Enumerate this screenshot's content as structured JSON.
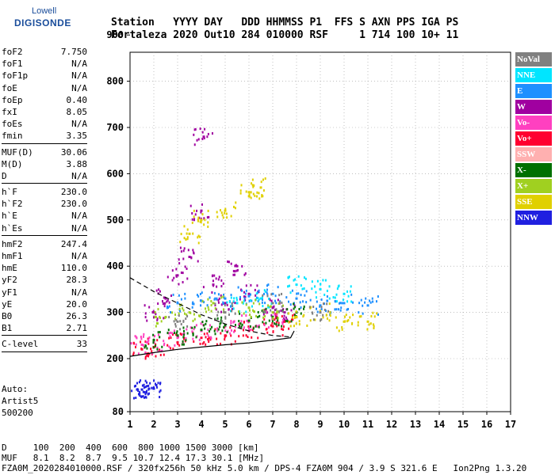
{
  "logo": {
    "line1": "Lowell",
    "line2": "DIGISONDE"
  },
  "header": {
    "line1": "Station   YYYY DAY   DDD HHMMSS P1  FFS S AXN PPS IGA PS",
    "line2": "Fortaleza 2020 Out10 284 010000 RSF     1 714 100 10+ 11"
  },
  "params": {
    "group1": [
      {
        "k": "foF2",
        "v": "7.750"
      },
      {
        "k": "foF1",
        "v": "N/A"
      },
      {
        "k": "foF1p",
        "v": "N/A"
      },
      {
        "k": "foE",
        "v": "N/A"
      },
      {
        "k": "foEp",
        "v": "0.40"
      },
      {
        "k": "fxI",
        "v": "8.05"
      },
      {
        "k": "foEs",
        "v": "N/A"
      },
      {
        "k": "fmin",
        "v": "3.35"
      }
    ],
    "group2": [
      {
        "k": "MUF(D)",
        "v": "30.06"
      },
      {
        "k": "M(D)",
        "v": "3.88"
      },
      {
        "k": "D",
        "v": "N/A"
      }
    ],
    "group3": [
      {
        "k": "h`F",
        "v": "230.0"
      },
      {
        "k": "h`F2",
        "v": "230.0"
      },
      {
        "k": "h`E",
        "v": "N/A"
      },
      {
        "k": "h`Es",
        "v": "N/A"
      }
    ],
    "group4": [
      {
        "k": "hmF2",
        "v": "247.4"
      },
      {
        "k": "hmF1",
        "v": "N/A"
      },
      {
        "k": "hmE",
        "v": "110.0"
      },
      {
        "k": "yF2",
        "v": "28.3"
      },
      {
        "k": "yF1",
        "v": "N/A"
      },
      {
        "k": "yE",
        "v": "20.0"
      },
      {
        "k": "B0",
        "v": "26.3"
      },
      {
        "k": "B1",
        "v": "2.71"
      }
    ],
    "group5": [
      {
        "k": "C-level",
        "v": "33"
      }
    ]
  },
  "auto": {
    "line1": "Auto:",
    "line2": "Artist5",
    "line3": "500200"
  },
  "legend": [
    {
      "label": "NoVal",
      "color": "#808080"
    },
    {
      "label": "NNE",
      "color": "#00e5ff"
    },
    {
      "label": "E",
      "color": "#1e90ff"
    },
    {
      "label": "W",
      "color": "#a000a0"
    },
    {
      "label": "Vo-",
      "color": "#ff40c0"
    },
    {
      "label": "Vo+",
      "color": "#ff0030"
    },
    {
      "label": "SSW",
      "color": "#ffb0b0"
    },
    {
      "label": "X-",
      "color": "#007000"
    },
    {
      "label": "X+",
      "color": "#a0d020"
    },
    {
      "label": "SSE",
      "color": "#e0d000"
    },
    {
      "label": "NNW",
      "color": "#2020e0"
    }
  ],
  "footer": {
    "line1": "D     100  200  400  600  800 1000 1500 3000 [km]",
    "line2": "MUF   8.1  8.2  8.7  9.5 10.7 12.4 17.3 30.1 [MHz]",
    "line3": "FZA0M_2020284010000.RSF / 320fx256h 50 kHz 5.0 km / DPS-4 FZA0M 904 / 3.9 S 321.6 E   Ion2Png 1.3.20"
  },
  "chart_data": {
    "type": "scatter",
    "title": "",
    "xlabel": "",
    "ylabel": "",
    "xlim": [
      1,
      17
    ],
    "ylim": [
      80,
      900
    ],
    "xticks": [
      1,
      2,
      3,
      4,
      5,
      6,
      7,
      8,
      9,
      10,
      11,
      12,
      13,
      14,
      15,
      16,
      17
    ],
    "yticks": [
      80,
      200,
      300,
      400,
      500,
      600,
      700,
      800,
      900
    ],
    "grid": true,
    "series": [
      {
        "name": "W",
        "color": "#a000a0",
        "points": [
          [
            2.0,
            300
          ],
          [
            2.5,
            330
          ],
          [
            3.0,
            380
          ],
          [
            3.5,
            420
          ],
          [
            4.0,
            520
          ],
          [
            4.1,
            680
          ],
          [
            4.5,
            360
          ],
          [
            5.0,
            320
          ],
          [
            5.5,
            400
          ],
          [
            6.0,
            340
          ],
          [
            7.0,
            310
          ],
          [
            7.5,
            300
          ]
        ]
      },
      {
        "name": "E",
        "color": "#1e90ff",
        "points": [
          [
            3.0,
            320
          ],
          [
            4.0,
            325
          ],
          [
            5.0,
            330
          ],
          [
            6.0,
            335
          ],
          [
            7.0,
            340
          ],
          [
            8.0,
            330
          ],
          [
            9.0,
            315
          ],
          [
            10.0,
            320
          ],
          [
            11.0,
            315
          ]
        ]
      },
      {
        "name": "Vo+",
        "color": "#ff0030",
        "points": [
          [
            1.5,
            220
          ],
          [
            2.0,
            225
          ],
          [
            3.0,
            235
          ],
          [
            4.0,
            245
          ],
          [
            5.0,
            250
          ],
          [
            6.0,
            260
          ],
          [
            7.0,
            270
          ],
          [
            7.5,
            280
          ]
        ]
      },
      {
        "name": "Vo-",
        "color": "#ff40c0",
        "points": [
          [
            1.5,
            230
          ],
          [
            2.0,
            235
          ],
          [
            3.0,
            245
          ],
          [
            4.0,
            260
          ],
          [
            5.0,
            270
          ],
          [
            6.0,
            280
          ],
          [
            7.0,
            285
          ]
        ]
      },
      {
        "name": "X-",
        "color": "#007000",
        "points": [
          [
            2.0,
            240
          ],
          [
            3.0,
            250
          ],
          [
            4.0,
            262
          ],
          [
            5.0,
            272
          ],
          [
            6.0,
            282
          ],
          [
            7.0,
            290
          ],
          [
            8.0,
            300
          ]
        ]
      },
      {
        "name": "SSE",
        "color": "#e0d000",
        "points": [
          [
            3.5,
            470
          ],
          [
            4.0,
            500
          ],
          [
            5.0,
            520
          ],
          [
            6.0,
            560
          ],
          [
            6.5,
            570
          ],
          [
            8.0,
            290
          ],
          [
            9.0,
            300
          ],
          [
            10.0,
            280
          ],
          [
            11.0,
            280
          ]
        ]
      },
      {
        "name": "NNE",
        "color": "#00e5ff",
        "points": [
          [
            5.5,
            320
          ],
          [
            6.5,
            330
          ],
          [
            8.0,
            360
          ],
          [
            9.0,
            350
          ],
          [
            10.0,
            340
          ]
        ]
      },
      {
        "name": "NNW",
        "color": "#2020e0",
        "points": [
          [
            1.3,
            130
          ],
          [
            1.5,
            130
          ],
          [
            1.8,
            132
          ],
          [
            2.0,
            132
          ]
        ]
      },
      {
        "name": "X+",
        "color": "#a0d020",
        "points": [
          [
            2.5,
            290
          ],
          [
            3.5,
            300
          ],
          [
            4.5,
            320
          ],
          [
            6.0,
            310
          ],
          [
            7.0,
            300
          ]
        ]
      },
      {
        "name": "NoVal",
        "color": "#808080",
        "points": [
          [
            3.0,
            280
          ],
          [
            5.0,
            300
          ],
          [
            7.0,
            320
          ],
          [
            9.0,
            300
          ]
        ]
      }
    ],
    "lines": [
      {
        "name": "trace",
        "points": [
          [
            1,
            205
          ],
          [
            2,
            213
          ],
          [
            3,
            220
          ],
          [
            4,
            225
          ],
          [
            5,
            230
          ],
          [
            6,
            234
          ],
          [
            7,
            240
          ],
          [
            7.75,
            245
          ],
          [
            7.9,
            260
          ]
        ]
      },
      {
        "name": "profile",
        "points": [
          [
            1,
            375
          ],
          [
            2,
            345
          ],
          [
            3,
            320
          ],
          [
            4,
            295
          ],
          [
            5,
            275
          ],
          [
            6,
            260
          ],
          [
            7,
            250
          ],
          [
            7.75,
            247
          ]
        ]
      }
    ]
  }
}
